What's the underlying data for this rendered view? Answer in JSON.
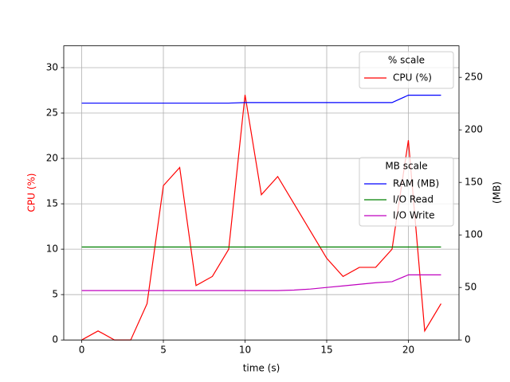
{
  "chart_data": {
    "type": "line",
    "xlabel": "time (s)",
    "ylabel": "CPU (%)",
    "ylabel_color": "#ff0000",
    "y2label": "(MB)",
    "x": [
      0,
      1,
      2,
      3,
      4,
      5,
      6,
      7,
      8,
      9,
      10,
      11,
      12,
      13,
      14,
      15,
      16,
      17,
      18,
      19,
      20,
      21,
      22
    ],
    "series": [
      {
        "name": "CPU (%)",
        "color": "#ff0000",
        "axis": "y",
        "values": [
          0,
          1,
          0,
          0,
          4,
          17,
          19,
          6,
          7,
          10,
          27,
          16,
          18,
          15,
          12,
          9,
          7,
          8,
          8,
          10,
          22,
          1,
          4
        ]
      },
      {
        "name": "RAM (MB)",
        "color": "#0000ff",
        "axis": "y2",
        "values": [
          225.5,
          225.5,
          225.5,
          225.5,
          225.5,
          225.5,
          225.5,
          225.5,
          225.5,
          225.5,
          226,
          226,
          226,
          226,
          226,
          226,
          226,
          226,
          226,
          226,
          233,
          233,
          233
        ]
      },
      {
        "name": "I/O Read",
        "color": "#008000",
        "axis": "y2",
        "values": [
          88.5,
          88.5,
          88.5,
          88.5,
          88.5,
          88.5,
          88.5,
          88.5,
          88.5,
          88.5,
          88.5,
          88.5,
          88.5,
          88.5,
          88.5,
          88.5,
          88.5,
          88.5,
          88.5,
          88.5,
          88.5,
          88.5,
          88.5
        ]
      },
      {
        "name": "I/O Write",
        "color": "#bf00bf",
        "axis": "y2",
        "values": [
          47,
          47,
          47,
          47,
          47,
          47,
          47,
          47,
          47,
          47,
          47,
          47,
          47,
          47.5,
          48.5,
          50,
          51.5,
          53,
          54.5,
          55.5,
          62,
          62,
          62
        ]
      }
    ],
    "xlim": [
      -1.1,
      23.1
    ],
    "xticks": [
      0,
      5,
      10,
      15,
      20
    ],
    "ylim": [
      0,
      32.4
    ],
    "yticks": [
      0,
      5,
      10,
      15,
      20,
      25,
      30
    ],
    "y2lim": [
      0,
      280
    ],
    "y2ticks": [
      0,
      50,
      100,
      150,
      200,
      250
    ],
    "grid": true,
    "y_legend_title": "% scale",
    "y2_legend_title": "MB scale"
  }
}
